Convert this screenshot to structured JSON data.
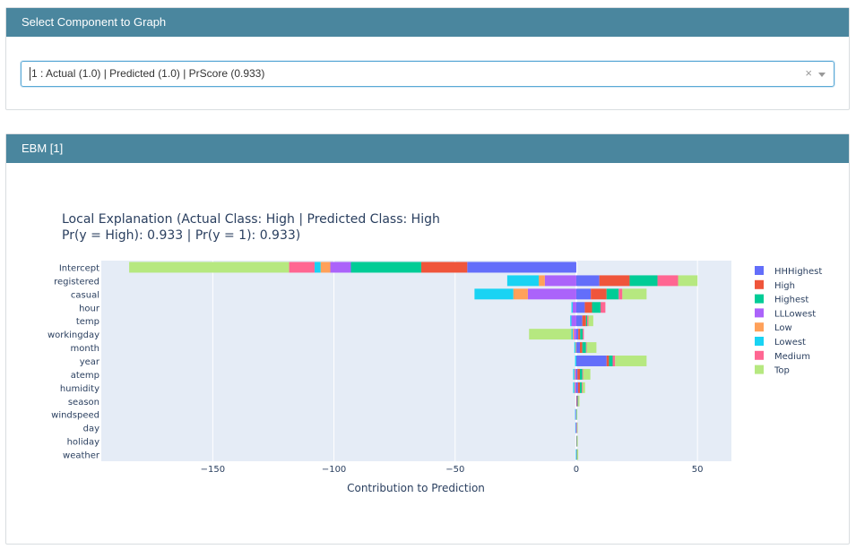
{
  "panel1": {
    "header": "Select Component to Graph",
    "select_value": "1 : Actual (1.0) | Predicted (1.0) | PrScore (0.933)",
    "clear_icon": "×"
  },
  "panel2": {
    "header": "EBM [1]"
  },
  "chart_data": {
    "type": "bar",
    "orientation": "horizontal",
    "barmode": "relative",
    "title_line1": "Local Explanation (Actual Class: High | Predicted Class: High",
    "title_line2": "Pr(y = High): 0.933 | Pr(y = 1): 0.933)",
    "xlabel": "Contribution to Prediction",
    "ylabel": "",
    "xlim": [
      -196,
      64
    ],
    "xticks": [
      -150,
      -100,
      -50,
      0,
      50
    ],
    "xtick_labels": [
      "−150",
      "−100",
      "−50",
      "0",
      "50"
    ],
    "categories": [
      "Intercept",
      "registered",
      "casual",
      "hour",
      "temp",
      "workingday",
      "month",
      "year",
      "atemp",
      "humidity",
      "season",
      "windspeed",
      "day",
      "holiday",
      "weather"
    ],
    "series": [
      {
        "name": "HHHighest",
        "color": "#636efa",
        "values": [
          -45,
          9.5,
          6,
          3.5,
          2.5,
          0.8,
          1.5,
          12.5,
          0.5,
          0.7,
          0.2,
          0,
          0.1,
          0.1,
          0.1
        ]
      },
      {
        "name": "High",
        "color": "#ef553b",
        "values": [
          -19,
          12.5,
          6.5,
          3,
          1.5,
          0.8,
          1,
          1,
          1,
          0.8,
          0.2,
          0,
          0,
          0.1,
          0.1
        ]
      },
      {
        "name": "Highest",
        "color": "#00cc96",
        "values": [
          -29,
          11.5,
          5,
          3.5,
          0.5,
          1,
          1.5,
          1.5,
          1,
          0.8,
          0.2,
          0.1,
          0,
          0.1,
          0.1
        ]
      },
      {
        "name": "LLLowest",
        "color": "#ab63fa",
        "values": [
          -8.5,
          -13,
          -20,
          -1.5,
          -2,
          -1,
          0,
          0,
          -0.5,
          -0.5,
          0,
          -0.3,
          -0.2,
          0,
          -0.1
        ]
      },
      {
        "name": "Low",
        "color": "#ffa15a",
        "values": [
          -4,
          -2.5,
          -6,
          0,
          0,
          -0.5,
          -0.3,
          0,
          -0.3,
          -0.3,
          0,
          0,
          0,
          0,
          0
        ]
      },
      {
        "name": "Lowest",
        "color": "#19d3f3",
        "values": [
          -2.5,
          -13,
          -16,
          -0.5,
          -0.5,
          -0.5,
          -0.5,
          -0.5,
          -0.5,
          -0.5,
          0,
          -0.2,
          -0.2,
          0,
          -0.1
        ]
      },
      {
        "name": "Medium",
        "color": "#ff6692",
        "values": [
          -10.5,
          8.5,
          1.5,
          2,
          0.5,
          0.5,
          0.3,
          1,
          0.3,
          0.3,
          0.2,
          0,
          0.2,
          0,
          0
        ]
      },
      {
        "name": "Top",
        "color": "#b6e880",
        "values": [
          -66,
          8,
          10,
          0,
          2,
          -17.5,
          4,
          13,
          3,
          1,
          0.5,
          0.3,
          0.3,
          0.3,
          0.5
        ]
      }
    ],
    "legend_position": "right"
  }
}
